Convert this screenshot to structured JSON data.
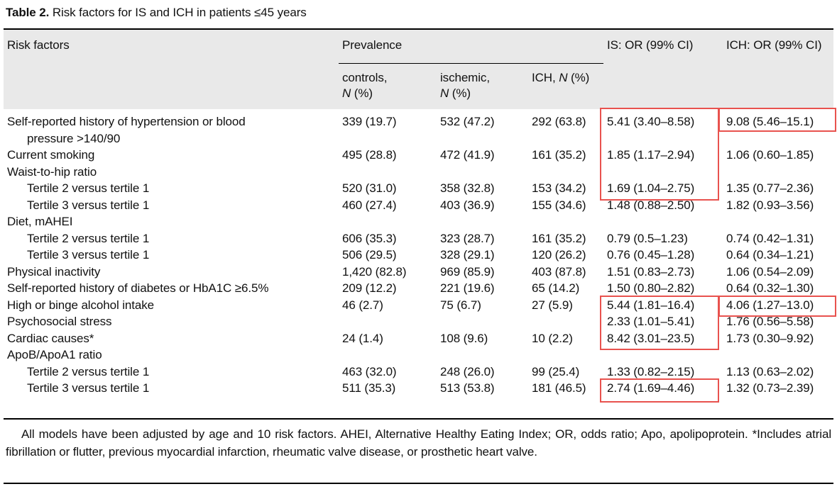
{
  "title": {
    "label": "Table 2.",
    "caption": " Risk factors for IS and ICH in patients ≤45 years"
  },
  "colors": {
    "highlight_red": "#e8524e",
    "header_bg": "#e9e9e9",
    "rule": "#000000"
  },
  "table": {
    "header": {
      "risk_factors": "Risk factors",
      "prevalence": "Prevalence",
      "is_or": "IS: OR (99% CI)",
      "ich_or": "ICH: OR (99% CI)",
      "subheaders": [
        {
          "name": "controls-n-header",
          "segments": [
            {
              "t": "controls,"
            },
            {
              "br": true
            },
            {
              "t": "N",
              "italic": true
            },
            {
              "t": " (%)"
            }
          ]
        },
        {
          "name": "ischemic-n-header",
          "segments": [
            {
              "t": "ischemic,"
            },
            {
              "br": true
            },
            {
              "t": "N",
              "italic": true
            },
            {
              "t": " (%)"
            }
          ]
        },
        {
          "name": "ich-n-header",
          "segments": [
            {
              "t": "ICH, "
            },
            {
              "t": "N",
              "italic": true
            },
            {
              "t": " (%)"
            }
          ]
        }
      ]
    },
    "rows": [
      {
        "label": [
          "Self-reported history of hypertension or blood",
          "pressure >140/90"
        ],
        "indent": 0,
        "controls": "339 (19.7)",
        "ischemic": "532 (47.2)",
        "ich": "292 (63.8)",
        "is_or": "5.41 (3.40–8.58)",
        "ich_or": "9.08 (5.46–15.1)"
      },
      {
        "label": [
          "Current smoking"
        ],
        "indent": 0,
        "controls": "495 (28.8)",
        "ischemic": "472 (41.9)",
        "ich": "161 (35.2)",
        "is_or": "1.85 (1.17–2.94)",
        "ich_or": "1.06 (0.60–1.85)"
      },
      {
        "label": [
          "Waist-to-hip ratio"
        ],
        "indent": 0,
        "controls": "",
        "ischemic": "",
        "ich": "",
        "is_or": "",
        "ich_or": ""
      },
      {
        "label": [
          "Tertile 2 versus tertile 1"
        ],
        "indent": 1,
        "controls": "520 (31.0)",
        "ischemic": "358 (32.8)",
        "ich": "153 (34.2)",
        "is_or": "1.69 (1.04–2.75)",
        "ich_or": "1.35 (0.77–2.36)"
      },
      {
        "label": [
          "Tertile 3 versus tertile 1"
        ],
        "indent": 1,
        "controls": "460 (27.4)",
        "ischemic": "403 (36.9)",
        "ich": "155 (34.6)",
        "is_or": "1.48 (0.88–2.50)",
        "ich_or": "1.82 (0.93–3.56)"
      },
      {
        "label": [
          "Diet, mAHEI"
        ],
        "indent": 0,
        "controls": "",
        "ischemic": "",
        "ich": "",
        "is_or": "",
        "ich_or": ""
      },
      {
        "label": [
          "Tertile 2 versus tertile 1"
        ],
        "indent": 1,
        "controls": "606 (35.3)",
        "ischemic": "323 (28.7)",
        "ich": "161 (35.2)",
        "is_or": "0.79 (0.5–1.23)",
        "ich_or": "0.74 (0.42–1.31)"
      },
      {
        "label": [
          "Tertile 3 versus tertile 1"
        ],
        "indent": 1,
        "controls": "506 (29.5)",
        "ischemic": "328 (29.1)",
        "ich": "120 (26.2)",
        "is_or": "0.76 (0.45–1.28)",
        "ich_or": "0.64 (0.34–1.21)"
      },
      {
        "label": [
          "Physical inactivity"
        ],
        "indent": 0,
        "controls": "1,420 (82.8)",
        "ischemic": "969 (85.9)",
        "ich": "403 (87.8)",
        "is_or": "1.51 (0.83–2.73)",
        "ich_or": "1.06 (0.54–2.09)"
      },
      {
        "label": [
          "Self-reported history of diabetes or HbA1C ≥6.5%"
        ],
        "indent": 0,
        "controls": "209 (12.2)",
        "ischemic": "221 (19.6)",
        "ich": "65 (14.2)",
        "is_or": "1.50 (0.80–2.82)",
        "ich_or": "0.64 (0.32–1.30)"
      },
      {
        "label": [
          "High or binge alcohol intake"
        ],
        "indent": 0,
        "controls": "46 (2.7)",
        "ischemic": "75 (6.7)",
        "ich": "27 (5.9)",
        "is_or": "5.44 (1.81–16.4)",
        "ich_or": "4.06 (1.27–13.0)"
      },
      {
        "label": [
          "Psychosocial stress"
        ],
        "indent": 0,
        "controls": "",
        "ischemic": "",
        "ich": "",
        "is_or": "2.33 (1.01–5.41)",
        "ich_or": "1.76 (0.56–5.58)"
      },
      {
        "label": [
          "Cardiac causes*"
        ],
        "indent": 0,
        "controls": "24 (1.4)",
        "ischemic": "108 (9.6)",
        "ich": "10 (2.2)",
        "is_or": "8.42 (3.01–23.5)",
        "ich_or": "1.73 (0.30–9.92)"
      },
      {
        "label": [
          "ApoB/ApoA1 ratio"
        ],
        "indent": 0,
        "controls": "",
        "ischemic": "",
        "ich": "",
        "is_or": "",
        "ich_or": ""
      },
      {
        "label": [
          "Tertile 2 versus tertile 1"
        ],
        "indent": 1,
        "controls": "463 (32.0)",
        "ischemic": "248 (26.0)",
        "ich": "99 (25.4)",
        "is_or": "1.33 (0.82–2.15)",
        "ich_or": "1.13 (0.63–2.02)"
      },
      {
        "label": [
          "Tertile 3 versus tertile 1"
        ],
        "indent": 1,
        "controls": "511 (35.3)",
        "ischemic": "513 (53.8)",
        "ich": "181 (46.5)",
        "is_or": "2.74 (1.69–4.46)",
        "ich_or": "1.32 (0.73–2.39)"
      }
    ],
    "highlights": [
      {
        "column": "is_or",
        "from_row": 0,
        "to_row": 3
      },
      {
        "column": "ich_or",
        "from_row": 0,
        "to_row": 0
      },
      {
        "column": "is_or",
        "from_row": 10,
        "to_row": 12
      },
      {
        "column": "ich_or",
        "from_row": 10,
        "to_row": 10
      },
      {
        "column": "is_or",
        "from_row": 15,
        "to_row": 15
      }
    ]
  },
  "footnote": "All models have been adjusted by age and 10 risk factors. AHEI, Alternative Healthy Eating Index; OR, odds ratio; Apo, apolipoprotein. *Includes atrial fibrillation or flutter, previous myocardial infarction, rheumatic valve disease, or prosthetic heart valve."
}
